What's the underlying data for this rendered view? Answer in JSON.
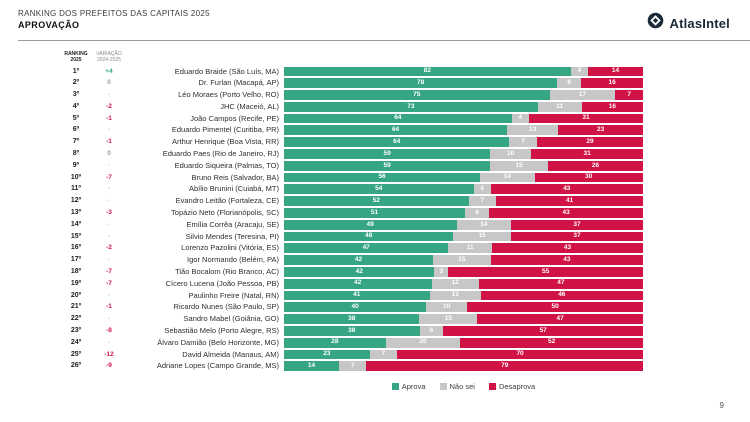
{
  "header": {
    "title_line1": "RANKING DOS PREFEITOS DAS CAPITAIS 2025",
    "title_line2": "APROVAÇÃO",
    "logo_text": "AtlasIntel"
  },
  "columns": {
    "rank": "RANKING\n2025",
    "variation": "VARIAÇÃO\n2024-2025"
  },
  "colors": {
    "aprova": "#35A584",
    "nao_sei": "#C7C7C7",
    "desaprova": "#D11245",
    "logo_navy": "#1B2A3A"
  },
  "legend": {
    "items": [
      {
        "label": "Aprova",
        "key": "aprova"
      },
      {
        "label": "Não sei",
        "key": "nao_sei"
      },
      {
        "label": "Desaprova",
        "key": "desaprova"
      }
    ]
  },
  "page_number": "9",
  "chart": {
    "rows": [
      {
        "rank": "1º",
        "variation": "+4",
        "variation_type": "pos",
        "name": "Eduardo Braide (São Luís, MA)",
        "aprova": 82,
        "nao_sei": 4,
        "desaprova": 14
      },
      {
        "rank": "2º",
        "variation": "0",
        "variation_type": "zero",
        "name": "Dr. Furlan (Macapá, AP)",
        "aprova": 78,
        "nao_sei": 6,
        "desaprova": 16
      },
      {
        "rank": "3º",
        "variation": "-",
        "variation_type": "none",
        "name": "Léo Moraes (Porto Velho, RO)",
        "aprova": 75,
        "nao_sei": 17,
        "desaprova": 7
      },
      {
        "rank": "4º",
        "variation": "-2",
        "variation_type": "neg",
        "name": "JHC (Maceió, AL)",
        "aprova": 73,
        "nao_sei": 11,
        "desaprova": 16
      },
      {
        "rank": "5º",
        "variation": "-1",
        "variation_type": "neg",
        "name": "João Campos (Recife, PE)",
        "aprova": 64,
        "nao_sei": 4,
        "desaprova": 31
      },
      {
        "rank": "6º",
        "variation": "-",
        "variation_type": "none",
        "name": "Eduardo Pimentel (Curitiba, PR)",
        "aprova": 64,
        "nao_sei": 13,
        "desaprova": 23
      },
      {
        "rank": "7º",
        "variation": "-1",
        "variation_type": "neg",
        "name": "Arthur Henrique (Boa Vista, RR)",
        "aprova": 64,
        "nao_sei": 7,
        "desaprova": 29
      },
      {
        "rank": "8º",
        "variation": "0",
        "variation_type": "zero",
        "name": "Eduardo Paes (Rio de Janeiro, RJ)",
        "aprova": 59,
        "nao_sei": 10,
        "desaprova": 31
      },
      {
        "rank": "9º",
        "variation": "-",
        "variation_type": "none",
        "name": "Eduardo Siqueira (Palmas, TO)",
        "aprova": 59,
        "nao_sei": 15,
        "desaprova": 26
      },
      {
        "rank": "10º",
        "variation": "-7",
        "variation_type": "neg",
        "name": "Bruno Reis (Salvador, BA)",
        "aprova": 56,
        "nao_sei": 14,
        "desaprova": 30
      },
      {
        "rank": "11º",
        "variation": "-",
        "variation_type": "none",
        "name": "Abílio Brunini (Cuiabá, MT)",
        "aprova": 54,
        "nao_sei": 4,
        "desaprova": 43
      },
      {
        "rank": "12º",
        "variation": "-",
        "variation_type": "none",
        "name": "Evandro Leitão (Fortaleza, CE)",
        "aprova": 52,
        "nao_sei": 7,
        "desaprova": 41
      },
      {
        "rank": "13º",
        "variation": "-3",
        "variation_type": "neg",
        "name": "Topázio Neto (Florianópolis, SC)",
        "aprova": 51,
        "nao_sei": 6,
        "desaprova": 43
      },
      {
        "rank": "14º",
        "variation": "-",
        "variation_type": "none",
        "name": "Emília Corrêa (Aracaju, SE)",
        "aprova": 49,
        "nao_sei": 14,
        "desaprova": 37
      },
      {
        "rank": "15º",
        "variation": "-",
        "variation_type": "none",
        "name": "Silvio Mendes (Teresina, PI)",
        "aprova": 48,
        "nao_sei": 15,
        "desaprova": 37
      },
      {
        "rank": "16º",
        "variation": "-2",
        "variation_type": "neg",
        "name": "Lorenzo Pazolini (Vitória, ES)",
        "aprova": 47,
        "nao_sei": 11,
        "desaprova": 43
      },
      {
        "rank": "17º",
        "variation": "-",
        "variation_type": "none",
        "name": "Igor Normando (Belém, PA)",
        "aprova": 42,
        "nao_sei": 15,
        "desaprova": 43
      },
      {
        "rank": "18º",
        "variation": "-7",
        "variation_type": "neg",
        "name": "Tião Bocalom (Rio Branco, AC)",
        "aprova": 42,
        "nao_sei": 3,
        "desaprova": 55
      },
      {
        "rank": "19º",
        "variation": "-7",
        "variation_type": "neg",
        "name": "Cícero Lucena (João Pessoa, PB)",
        "aprova": 42,
        "nao_sei": 12,
        "desaprova": 47
      },
      {
        "rank": "20º",
        "variation": "-",
        "variation_type": "none",
        "name": "Paulinho Freire (Natal, RN)",
        "aprova": 41,
        "nao_sei": 13,
        "desaprova": 46
      },
      {
        "rank": "21º",
        "variation": "-1",
        "variation_type": "neg",
        "name": "Ricardo Nunes (São Paulo, SP)",
        "aprova": 40,
        "nao_sei": 10,
        "desaprova": 50
      },
      {
        "rank": "22º",
        "variation": "-",
        "variation_type": "none",
        "name": "Sandro Mabel (Goiânia, GO)",
        "aprova": 38,
        "nao_sei": 15,
        "desaprova": 47
      },
      {
        "rank": "23º",
        "variation": "-8",
        "variation_type": "neg",
        "name": "Sebastião Melo (Porto Alegre, RS)",
        "aprova": 38,
        "nao_sei": 6,
        "desaprova": 57
      },
      {
        "rank": "24º",
        "variation": "-",
        "variation_type": "none",
        "name": "Álvaro Damião (Belo Horizonte, MG)",
        "aprova": 28,
        "nao_sei": 20,
        "desaprova": 52
      },
      {
        "rank": "25º",
        "variation": "-12",
        "variation_type": "neg",
        "name": "David Almeida (Manaus, AM)",
        "aprova": 23,
        "nao_sei": 7,
        "desaprova": 70
      },
      {
        "rank": "26º",
        "variation": "-9",
        "variation_type": "neg",
        "name": "Adriane Lopes (Campo Grande, MS)",
        "aprova": 14,
        "nao_sei": 7,
        "desaprova": 79
      }
    ]
  },
  "chart_data": {
    "type": "bar",
    "stacked": true,
    "orientation": "horizontal",
    "unit": "%",
    "title": "RANKING DOS PREFEITOS DAS CAPITAIS 2025 — APROVAÇÃO",
    "legend_position": "bottom",
    "categories": [
      "Eduardo Braide (São Luís, MA)",
      "Dr. Furlan (Macapá, AP)",
      "Léo Moraes (Porto Velho, RO)",
      "JHC (Maceió, AL)",
      "João Campos (Recife, PE)",
      "Eduardo Pimentel (Curitiba, PR)",
      "Arthur Henrique (Boa Vista, RR)",
      "Eduardo Paes (Rio de Janeiro, RJ)",
      "Eduardo Siqueira (Palmas, TO)",
      "Bruno Reis (Salvador, BA)",
      "Abílio Brunini (Cuiabá, MT)",
      "Evandro Leitão (Fortaleza, CE)",
      "Topázio Neto (Florianópolis, SC)",
      "Emília Corrêa (Aracaju, SE)",
      "Silvio Mendes (Teresina, PI)",
      "Lorenzo Pazolini (Vitória, ES)",
      "Igor Normando (Belém, PA)",
      "Tião Bocalom (Rio Branco, AC)",
      "Cícero Lucena (João Pessoa, PB)",
      "Paulinho Freire (Natal, RN)",
      "Ricardo Nunes (São Paulo, SP)",
      "Sandro Mabel (Goiânia, GO)",
      "Sebastião Melo (Porto Alegre, RS)",
      "Álvaro Damião (Belo Horizonte, MG)",
      "David Almeida (Manaus, AM)",
      "Adriane Lopes (Campo Grande, MS)"
    ],
    "rankings_2025": [
      "1º",
      "2º",
      "3º",
      "4º",
      "5º",
      "6º",
      "7º",
      "8º",
      "9º",
      "10º",
      "11º",
      "12º",
      "13º",
      "14º",
      "15º",
      "16º",
      "17º",
      "18º",
      "19º",
      "20º",
      "21º",
      "22º",
      "23º",
      "24º",
      "25º",
      "26º"
    ],
    "variation_2024_2025": [
      "+4",
      "0",
      "-",
      "-2",
      "-1",
      "-",
      "-1",
      "0",
      "-",
      "-7",
      "-",
      "-",
      "-3",
      "-",
      "-",
      "-2",
      "-",
      "-7",
      "-7",
      "-",
      "-1",
      "-",
      "-8",
      "-",
      "-12",
      "-9"
    ],
    "series": [
      {
        "name": "Aprova",
        "values": [
          82,
          78,
          75,
          73,
          64,
          64,
          64,
          59,
          59,
          56,
          54,
          52,
          51,
          49,
          48,
          47,
          42,
          42,
          42,
          41,
          40,
          38,
          38,
          28,
          23,
          14
        ]
      },
      {
        "name": "Não sei",
        "values": [
          4,
          6,
          17,
          11,
          4,
          13,
          7,
          10,
          15,
          14,
          4,
          7,
          6,
          14,
          15,
          11,
          15,
          3,
          12,
          13,
          10,
          15,
          6,
          20,
          7,
          7
        ]
      },
      {
        "name": "Desaprova",
        "values": [
          14,
          16,
          7,
          16,
          31,
          23,
          29,
          31,
          26,
          30,
          43,
          41,
          43,
          37,
          37,
          43,
          43,
          55,
          47,
          46,
          50,
          47,
          57,
          52,
          70,
          79
        ]
      }
    ]
  }
}
